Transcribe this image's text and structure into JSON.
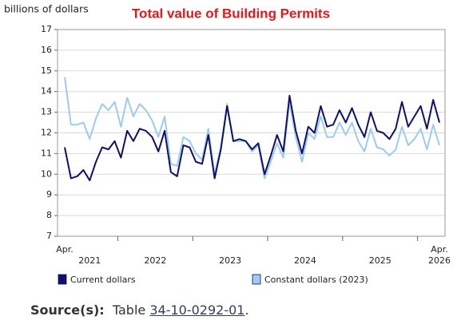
{
  "chart_data": {
    "type": "line",
    "title": "Total value of Building Permits",
    "y_label": "billions of dollars",
    "categories": [
      "Apr.",
      null,
      null,
      null,
      null,
      null,
      null,
      null,
      null,
      null,
      null,
      null,
      null,
      null,
      null,
      null,
      null,
      null,
      null,
      null,
      null,
      null,
      null,
      null,
      null,
      null,
      null,
      null,
      null,
      null,
      null,
      null,
      null,
      null,
      null,
      null,
      null,
      null,
      null,
      null,
      null,
      null,
      null,
      null,
      null,
      null,
      null,
      null,
      null,
      null,
      null,
      null,
      null,
      null,
      null,
      null,
      null,
      null,
      null,
      null,
      "Apr."
    ],
    "years": [
      "2021",
      "2022",
      "2023",
      "2024",
      "2025",
      "2026"
    ],
    "ylim": [
      7,
      17
    ],
    "yticks": [
      7,
      8,
      9,
      10,
      11,
      12,
      13,
      14,
      15,
      16,
      17
    ],
    "grid": true,
    "series": [
      {
        "name": "Current dollars",
        "color": "#10106b",
        "values": [
          11.3,
          9.8,
          9.9,
          10.2,
          9.7,
          10.6,
          11.3,
          11.2,
          11.6,
          10.8,
          12.1,
          11.6,
          12.2,
          12.1,
          11.8,
          11.1,
          12.1,
          10.1,
          9.9,
          11.4,
          11.3,
          10.6,
          10.5,
          11.9,
          9.8,
          11.2,
          13.3,
          11.6,
          11.7,
          11.6,
          11.2,
          11.5,
          10.0,
          10.9,
          11.9,
          11.1,
          13.8,
          12.1,
          11.0,
          12.3,
          12.0,
          13.3,
          12.3,
          12.4,
          13.1,
          12.5,
          13.2,
          12.4,
          11.8,
          13.0,
          12.1,
          12.0,
          11.7,
          12.2,
          13.5,
          12.3,
          12.8,
          13.3,
          12.2,
          13.6,
          12.5
        ]
      },
      {
        "name": "Constant dollars (2023)",
        "color": "#9ecbf0",
        "values": [
          14.7,
          12.4,
          12.4,
          12.5,
          11.7,
          12.7,
          13.4,
          13.1,
          13.5,
          12.3,
          13.7,
          12.8,
          13.4,
          13.1,
          12.6,
          11.8,
          12.8,
          10.5,
          10.4,
          11.8,
          11.6,
          11.0,
          10.7,
          12.2,
          10.0,
          11.3,
          13.4,
          11.6,
          11.6,
          11.6,
          11.1,
          11.4,
          9.8,
          10.6,
          11.5,
          10.8,
          13.5,
          11.8,
          10.6,
          12.0,
          11.7,
          12.8,
          11.8,
          11.8,
          12.5,
          11.9,
          12.5,
          11.6,
          11.1,
          12.2,
          11.3,
          11.2,
          10.9,
          11.2,
          12.3,
          11.4,
          11.7,
          12.2,
          11.2,
          12.4,
          11.4
        ]
      }
    ]
  },
  "source": {
    "label": "Source(s):",
    "prefix": "Table",
    "link": "34-10-0292-01",
    "suffix": "."
  }
}
